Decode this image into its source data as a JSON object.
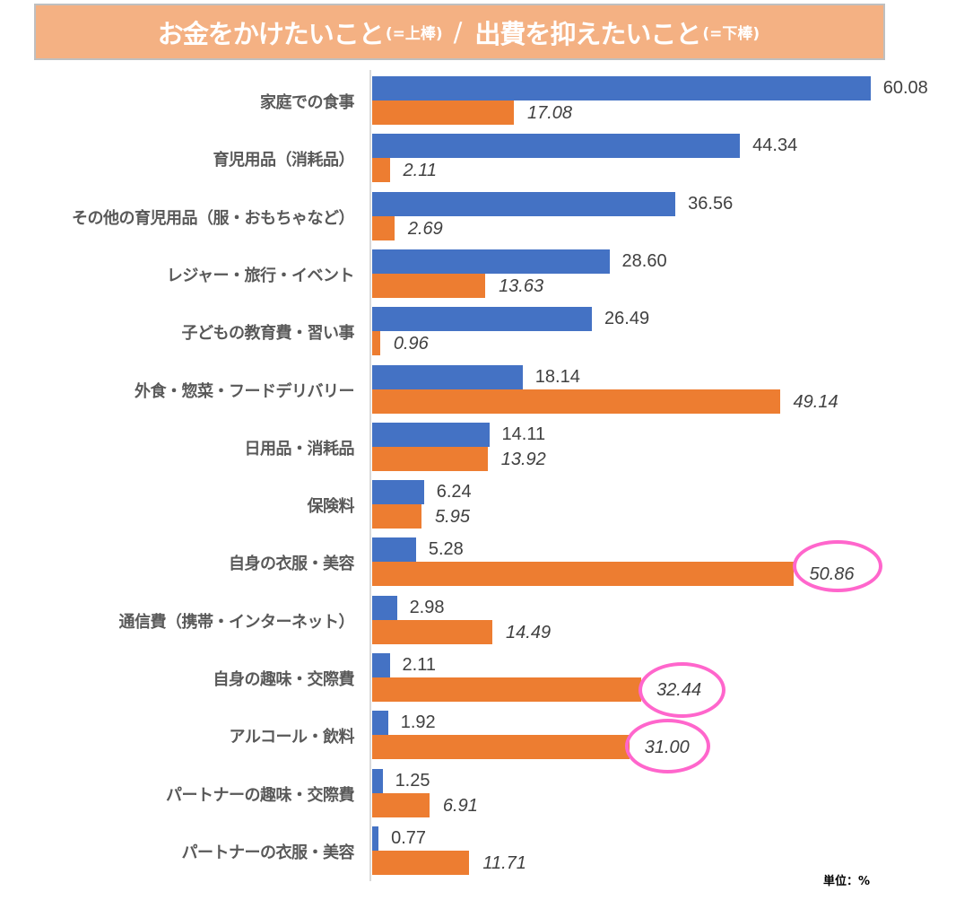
{
  "title": {
    "part1": "お金をかけたいこと",
    "part1_note": "(=上棒)",
    "separator": "/",
    "part2": "出費を抑えたいこと",
    "part2_note": "(=下棒)",
    "background_color": "#f4b183"
  },
  "unit_label": "単位：%",
  "colors": {
    "spend_more": "#4472c4",
    "cut_back": "#ed7d31",
    "highlight_circle": "#ff66cc",
    "axis": "#d9d9d9"
  },
  "chart_data": {
    "type": "bar",
    "orientation": "horizontal",
    "title": "お金をかけたいこと(=上棒) / 出費を抑えたいこと(=下棒)",
    "xlabel": "",
    "ylabel": "",
    "unit": "%",
    "xlim": [
      0,
      60
    ],
    "grid": false,
    "legend": "none (explained in title: upper bar / lower bar)",
    "categories": [
      "家庭での食事",
      "育児用品（消耗品）",
      "その他の育児用品（服・おもちゃなど）",
      "レジャー・旅行・イベント",
      "子どもの教育費・習い事",
      "外食・惣菜・フードデリバリー",
      "日用品・消耗品",
      "保険料",
      "自身の衣服・美容",
      "通信費（携帯・インターネット）",
      "自身の趣味・交際費",
      "アルコール・飲料",
      "パートナーの趣味・交際費",
      "パートナーの衣服・美容"
    ],
    "series": [
      {
        "name": "お金をかけたいこと（上棒）",
        "color": "#4472c4",
        "values": [
          60.08,
          44.34,
          36.56,
          28.6,
          26.49,
          18.14,
          14.11,
          6.24,
          5.28,
          2.98,
          2.11,
          1.92,
          1.25,
          0.77
        ],
        "labels": [
          "60.08",
          "44.34",
          "36.56",
          "28.60",
          "26.49",
          "18.14",
          "14.11",
          "6.24",
          "5.28",
          "2.98",
          "2.11",
          "1.92",
          "1.25",
          "0.77"
        ]
      },
      {
        "name": "出費を抑えたいこと（下棒）",
        "color": "#ed7d31",
        "values": [
          17.08,
          2.11,
          2.69,
          13.63,
          0.96,
          49.14,
          13.92,
          5.95,
          50.86,
          14.49,
          32.44,
          31.0,
          6.91,
          11.71
        ],
        "labels": [
          "17.08",
          "2.11",
          "2.69",
          "13.63",
          "0.96",
          "49.14",
          "13.92",
          "5.95",
          "50.86",
          "14.49",
          "32.44",
          "31.00",
          "6.91",
          "11.71"
        ]
      }
    ],
    "annotations": [
      {
        "type": "circle",
        "target": "自身の衣服・美容 / 出費を抑えたいこと",
        "value": "50.86"
      },
      {
        "type": "circle",
        "target": "自身の趣味・交際費 / 出費を抑えたいこと",
        "value": "32.44"
      },
      {
        "type": "circle",
        "target": "アルコール・飲料 / 出費を抑えたいこと",
        "value": "31.00"
      }
    ]
  }
}
